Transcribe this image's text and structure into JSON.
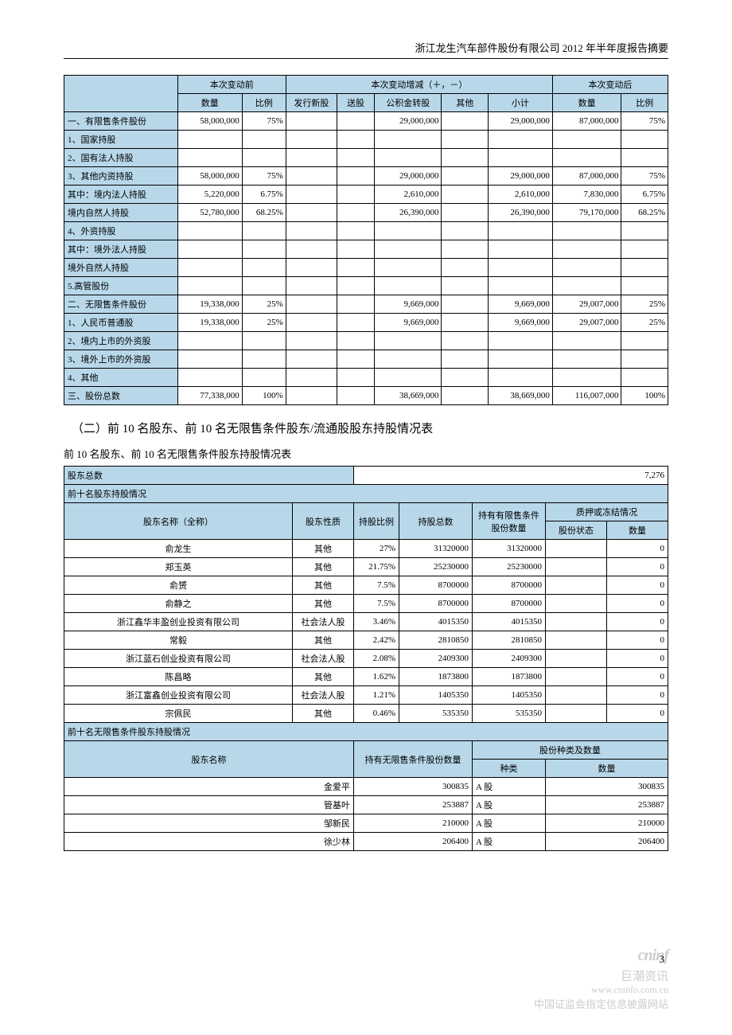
{
  "header": "浙江龙生汽车部件股份有限公司 2012 年半年度报告摘要",
  "page_number": "3",
  "table1": {
    "head_groups": {
      "before": "本次变动前",
      "change": "本次变动增减（＋，－）",
      "after": "本次变动后"
    },
    "cols": {
      "qty_before": "数量",
      "pct_before": "比例",
      "issue": "发行新股",
      "bonus": "送股",
      "reserve": "公积金转股",
      "other": "其他",
      "subtotal": "小计",
      "qty_after": "数量",
      "pct_after": "比例"
    },
    "rows": [
      {
        "label": "一、有限售条件股份",
        "qb": "58,000,000",
        "pb": "75%",
        "is": "",
        "bn": "",
        "rv": "29,000,000",
        "ot": "",
        "st": "29,000,000",
        "qa": "87,000,000",
        "pa": "75%"
      },
      {
        "label": "1、国家持股",
        "qb": "",
        "pb": "",
        "is": "",
        "bn": "",
        "rv": "",
        "ot": "",
        "st": "",
        "qa": "",
        "pa": ""
      },
      {
        "label": "2、国有法人持股",
        "qb": "",
        "pb": "",
        "is": "",
        "bn": "",
        "rv": "",
        "ot": "",
        "st": "",
        "qa": "",
        "pa": ""
      },
      {
        "label": "3、其他内资持股",
        "qb": "58,000,000",
        "pb": "75%",
        "is": "",
        "bn": "",
        "rv": "29,000,000",
        "ot": "",
        "st": "29,000,000",
        "qa": "87,000,000",
        "pa": "75%"
      },
      {
        "label": "其中：境内法人持股",
        "qb": "5,220,000",
        "pb": "6.75%",
        "is": "",
        "bn": "",
        "rv": "2,610,000",
        "ot": "",
        "st": "2,610,000",
        "qa": "7,830,000",
        "pa": "6.75%"
      },
      {
        "label": "境内自然人持股",
        "qb": "52,780,000",
        "pb": "68.25%",
        "is": "",
        "bn": "",
        "rv": "26,390,000",
        "ot": "",
        "st": "26,390,000",
        "qa": "79,170,000",
        "pa": "68.25%"
      },
      {
        "label": "4、外资持股",
        "qb": "",
        "pb": "",
        "is": "",
        "bn": "",
        "rv": "",
        "ot": "",
        "st": "",
        "qa": "",
        "pa": ""
      },
      {
        "label": "其中：境外法人持股",
        "qb": "",
        "pb": "",
        "is": "",
        "bn": "",
        "rv": "",
        "ot": "",
        "st": "",
        "qa": "",
        "pa": ""
      },
      {
        "label": "境外自然人持股",
        "qb": "",
        "pb": "",
        "is": "",
        "bn": "",
        "rv": "",
        "ot": "",
        "st": "",
        "qa": "",
        "pa": ""
      },
      {
        "label": "5.高管股份",
        "qb": "",
        "pb": "",
        "is": "",
        "bn": "",
        "rv": "",
        "ot": "",
        "st": "",
        "qa": "",
        "pa": ""
      },
      {
        "label": "二、无限售条件股份",
        "qb": "19,338,000",
        "pb": "25%",
        "is": "",
        "bn": "",
        "rv": "9,669,000",
        "ot": "",
        "st": "9,669,000",
        "qa": "29,007,000",
        "pa": "25%"
      },
      {
        "label": "1、人民币普通股",
        "qb": "19,338,000",
        "pb": "25%",
        "is": "",
        "bn": "",
        "rv": "9,669,000",
        "ot": "",
        "st": "9,669,000",
        "qa": "29,007,000",
        "pa": "25%"
      },
      {
        "label": "2、境内上市的外资股",
        "qb": "",
        "pb": "",
        "is": "",
        "bn": "",
        "rv": "",
        "ot": "",
        "st": "",
        "qa": "",
        "pa": ""
      },
      {
        "label": "3、境外上市的外资股",
        "qb": "",
        "pb": "",
        "is": "",
        "bn": "",
        "rv": "",
        "ot": "",
        "st": "",
        "qa": "",
        "pa": ""
      },
      {
        "label": "4、其他",
        "qb": "",
        "pb": "",
        "is": "",
        "bn": "",
        "rv": "",
        "ot": "",
        "st": "",
        "qa": "",
        "pa": ""
      },
      {
        "label": "三、股份总数",
        "qb": "77,338,000",
        "pb": "100%",
        "is": "",
        "bn": "",
        "rv": "38,669,000",
        "ot": "",
        "st": "38,669,000",
        "qa": "116,007,000",
        "pa": "100%"
      }
    ]
  },
  "section2_title": "（二）前 10 名股东、前 10 名无限售条件股东/流通股股东持股情况表",
  "section2_sub": "前 10 名股东、前 10 名无限售条件股东持股情况表",
  "table2": {
    "total_label": "股东总数",
    "total_value": "7,276",
    "top10_label": "前十名股东持股情况",
    "cols": {
      "name": "股东名称（全称）",
      "nature": "股东性质",
      "pct": "持股比例",
      "total": "持股总数",
      "restricted": "持有有限售条件股份数量",
      "pledge_group": "质押或冻结情况",
      "status": "股份状态",
      "qty": "数量"
    },
    "rows": [
      {
        "name": "俞龙生",
        "nature": "其他",
        "pct": "27%",
        "total": "31320000",
        "res": "31320000",
        "st": "",
        "qty": "0"
      },
      {
        "name": "郑玉英",
        "nature": "其他",
        "pct": "21.75%",
        "total": "25230000",
        "res": "25230000",
        "st": "",
        "qty": "0"
      },
      {
        "name": "俞赟",
        "nature": "其他",
        "pct": "7.5%",
        "total": "8700000",
        "res": "8700000",
        "st": "",
        "qty": "0"
      },
      {
        "name": "俞静之",
        "nature": "其他",
        "pct": "7.5%",
        "total": "8700000",
        "res": "8700000",
        "st": "",
        "qty": "0"
      },
      {
        "name": "浙江鑫华丰盈创业投资有限公司",
        "nature": "社会法人股",
        "pct": "3.46%",
        "total": "4015350",
        "res": "4015350",
        "st": "",
        "qty": "0"
      },
      {
        "name": "常毅",
        "nature": "其他",
        "pct": "2.42%",
        "total": "2810850",
        "res": "2810850",
        "st": "",
        "qty": "0"
      },
      {
        "name": "浙江蓝石创业投资有限公司",
        "nature": "社会法人股",
        "pct": "2.08%",
        "total": "2409300",
        "res": "2409300",
        "st": "",
        "qty": "0"
      },
      {
        "name": "陈昌略",
        "nature": "其他",
        "pct": "1.62%",
        "total": "1873800",
        "res": "1873800",
        "st": "",
        "qty": "0"
      },
      {
        "name": "浙江富鑫创业投资有限公司",
        "nature": "社会法人股",
        "pct": "1.21%",
        "total": "1405350",
        "res": "1405350",
        "st": "",
        "qty": "0"
      },
      {
        "name": "宗佩民",
        "nature": "其他",
        "pct": "0.46%",
        "total": "535350",
        "res": "535350",
        "st": "",
        "qty": "0"
      }
    ],
    "unrestricted_label": "前十名无限售条件股东持股情况",
    "ucols": {
      "name": "股东名称",
      "qty": "持有无限售条件股份数量",
      "type_group": "股份种类及数量",
      "type": "种类",
      "num": "数量"
    },
    "urows": [
      {
        "name": "金爱平",
        "qty": "300835",
        "type": "A 股",
        "num": "300835"
      },
      {
        "name": "管基叶",
        "qty": "253887",
        "type": "A 股",
        "num": "253887"
      },
      {
        "name": "邹新民",
        "qty": "210000",
        "type": "A 股",
        "num": "210000"
      },
      {
        "name": "徐少林",
        "qty": "206400",
        "type": "A 股",
        "num": "206400"
      }
    ]
  },
  "footer": {
    "logo": "cninf",
    "cn": "巨潮资讯",
    "url": "www.cninfo.com.cn",
    "desc": "中国证监会指定信息披露网站"
  }
}
